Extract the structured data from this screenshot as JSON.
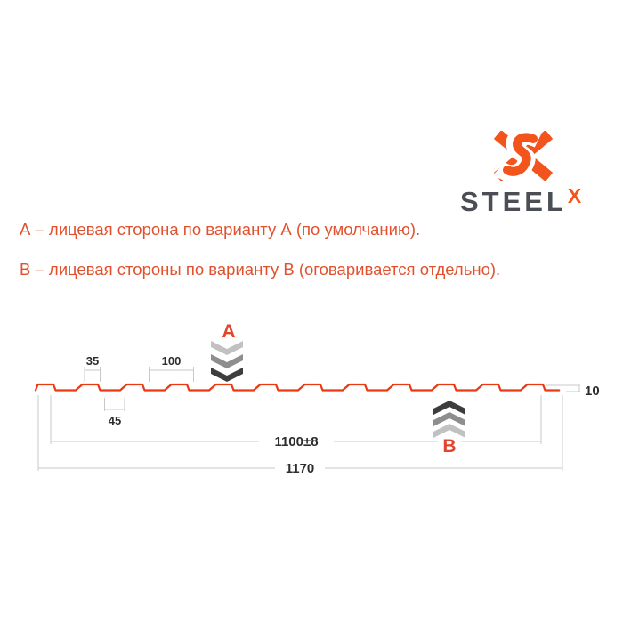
{
  "logo": {
    "brand": "STEEL",
    "brand_sup": "X",
    "icon": "steelx-monogram-icon",
    "orange": "#f2541b",
    "dark": "#4b4e55"
  },
  "legend": {
    "line_a": "А – лицевая сторона по варианту А (по умолчанию).",
    "line_b": "В – лицевая стороны по варианту В (оговаривается отдельно).",
    "color": "#e2512e"
  },
  "diagram": {
    "marker_a": "А",
    "marker_b": "В",
    "profile_color": "#eb3911",
    "dim_color": "#c9c9c9",
    "dim_text_color": "#2d2d2f",
    "marker_color": "#e0462b",
    "chevron_colors": [
      "#c2c1c1",
      "#8f8e8e",
      "#3f3c3c"
    ],
    "dims": {
      "crest_top": "35",
      "rib_pitch": "100",
      "rib_base": "45",
      "height": "10",
      "working_width": "1100±8",
      "total_width": "1170"
    },
    "profile": {
      "pitch_mm": 100,
      "crest_mm": 35,
      "valley_mm": 45,
      "slope_mm": 10,
      "height_mm": 10,
      "total_width_mm": 1170,
      "working_width_mm": 1100,
      "ribs": 12
    }
  }
}
